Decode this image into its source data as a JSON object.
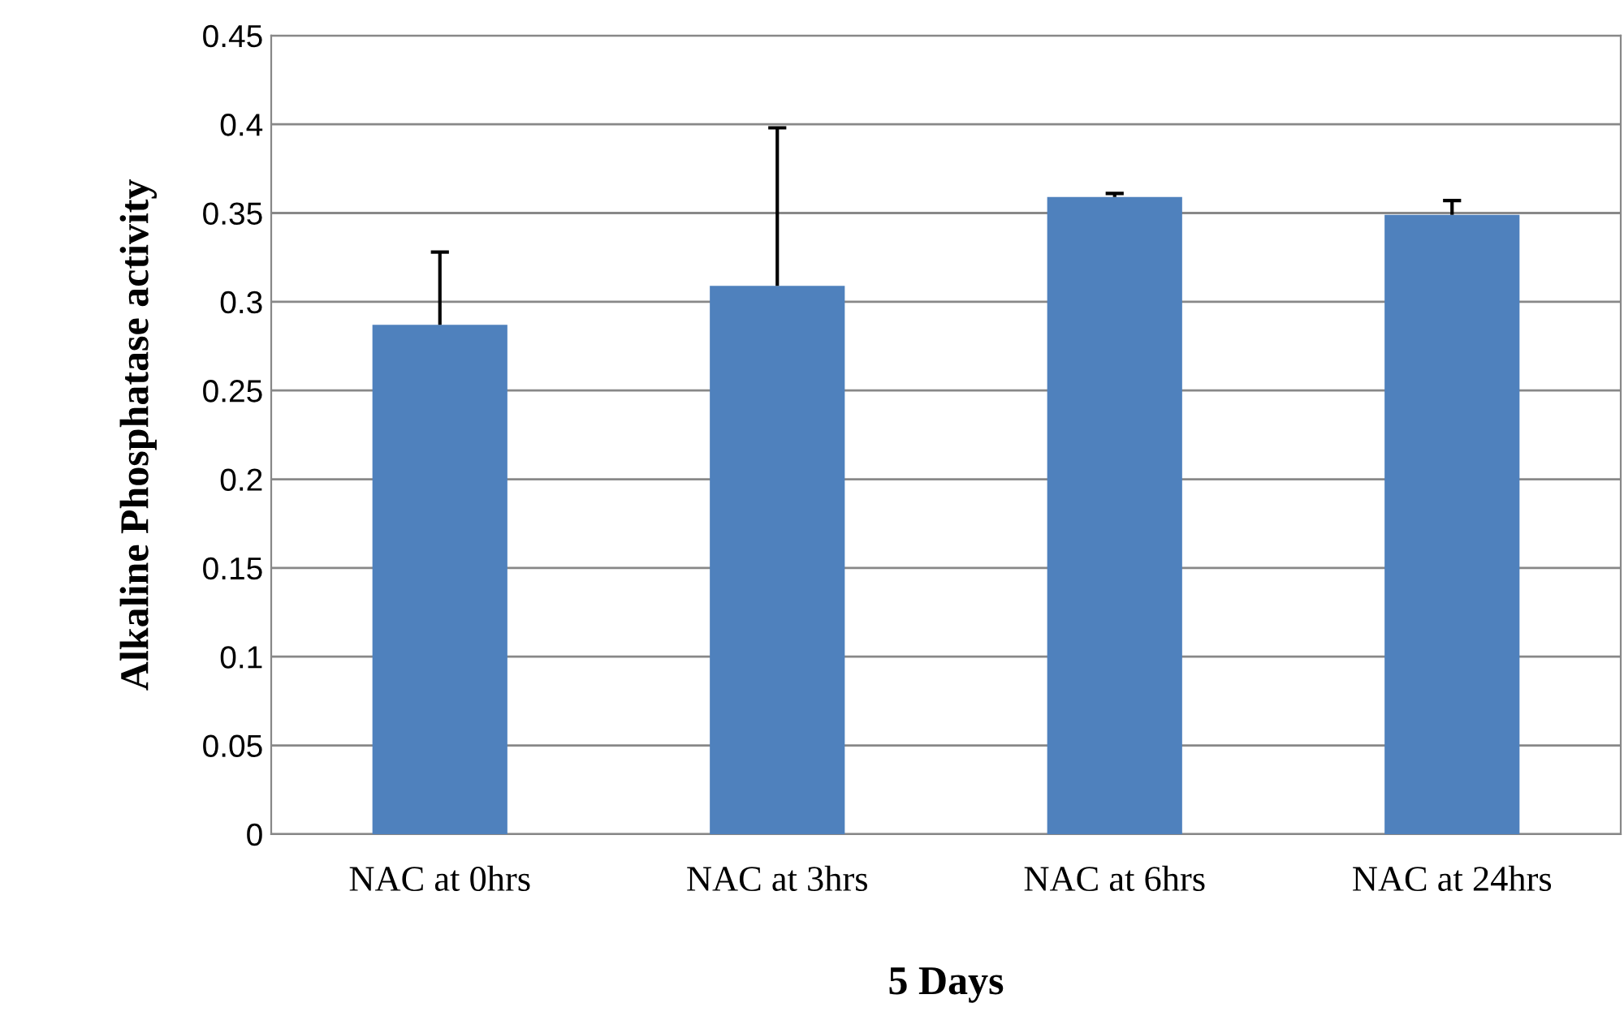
{
  "chart_data": {
    "type": "bar",
    "xlabel": "5 Days",
    "ylabel": "Alkaline Phosphatase activity",
    "categories": [
      "NAC at 0hrs",
      "NAC at 3hrs",
      "NAC at 6hrs",
      "NAC at 24hrs"
    ],
    "values": [
      0.287,
      0.309,
      0.359,
      0.349
    ],
    "errors": [
      [
        0.287,
        0.328
      ],
      [
        0.309,
        0.398
      ],
      [
        0.359,
        0.361
      ],
      [
        0.349,
        0.357
      ]
    ],
    "color": "#4f81bd",
    "ylim": [
      0,
      0.45
    ],
    "yticks": [
      0,
      0.05,
      0.1,
      0.15,
      0.2,
      0.25,
      0.3,
      0.35,
      0.4,
      0.45
    ],
    "grid": "y",
    "legend": false
  }
}
